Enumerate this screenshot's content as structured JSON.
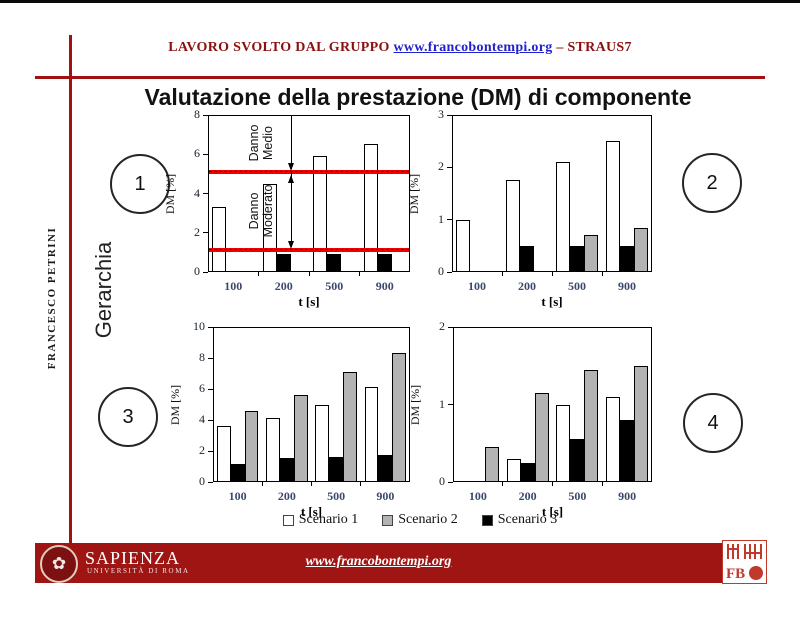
{
  "header": {
    "prefix": "LAVORO SVOLTO DAL GRUPPO",
    "link": "www.francobontempi.org",
    "suffix": "– STRAUS7"
  },
  "title": "Valutazione della prestazione (DM) di componente",
  "sidebar": {
    "author": "FRANCESCO PETRINI",
    "hierarchy_label": "Gerarchia"
  },
  "markers": [
    "1",
    "2",
    "3",
    "4"
  ],
  "legend": [
    {
      "label": "Scenario 1",
      "color": "#ffffff"
    },
    {
      "label": "Scenario 2",
      "color": "#b3b3b3"
    },
    {
      "label": "Scenario 3",
      "color": "#000000"
    }
  ],
  "chart_data": [
    {
      "id": 1,
      "type": "bar",
      "ylabel": "DM [%]",
      "xlabel": "t [s]",
      "ylim": [
        0,
        8
      ],
      "yticks": [
        0,
        2,
        4,
        6,
        8
      ],
      "categories": [
        "100",
        "200",
        "500",
        "900"
      ],
      "series": [
        {
          "name": "Scenario 1",
          "color": "#ffffff",
          "values": [
            3.3,
            4.5,
            5.9,
            6.5
          ]
        },
        {
          "name": "Scenario 2",
          "color": "#b3b3b3",
          "values": [
            0,
            0,
            0,
            0
          ]
        },
        {
          "name": "Scenario 3",
          "color": "#000000",
          "values": [
            0,
            0.9,
            0.9,
            0.9
          ]
        }
      ],
      "thresholds": [
        {
          "value": 5.1,
          "zone_label_lines": [
            "Danno",
            "Medio"
          ],
          "zone_from": 5.1,
          "zone_to": 8
        },
        {
          "value": 1.1,
          "zone_label_lines": [
            "Danno",
            "Moderato"
          ],
          "zone_from": 1.1,
          "zone_to": 5.1
        }
      ]
    },
    {
      "id": 2,
      "type": "bar",
      "ylabel": "DM [%]",
      "xlabel": "t [s]",
      "ylim": [
        0,
        3
      ],
      "yticks": [
        0,
        1,
        2,
        3
      ],
      "categories": [
        "100",
        "200",
        "500",
        "900"
      ],
      "series": [
        {
          "name": "Scenario 1",
          "color": "#ffffff",
          "values": [
            1.0,
            1.75,
            2.1,
            2.5
          ]
        },
        {
          "name": "Scenario 2",
          "color": "#b3b3b3",
          "values": [
            0,
            0,
            0.7,
            0.85
          ]
        },
        {
          "name": "Scenario 3",
          "color": "#000000",
          "values": [
            0,
            0.5,
            0.5,
            0.5
          ]
        }
      ]
    },
    {
      "id": 3,
      "type": "bar",
      "ylabel": "DM [%]",
      "xlabel": "t [s]",
      "ylim": [
        0,
        10
      ],
      "yticks": [
        0,
        2,
        4,
        6,
        8,
        10
      ],
      "categories": [
        "100",
        "200",
        "500",
        "900"
      ],
      "series": [
        {
          "name": "Scenario 1",
          "color": "#ffffff",
          "values": [
            3.6,
            4.1,
            5.0,
            6.1
          ]
        },
        {
          "name": "Scenario 2",
          "color": "#b3b3b3",
          "values": [
            4.6,
            5.6,
            7.1,
            8.3
          ]
        },
        {
          "name": "Scenario 3",
          "color": "#000000",
          "values": [
            1.15,
            1.55,
            1.6,
            1.75
          ]
        }
      ]
    },
    {
      "id": 4,
      "type": "bar",
      "ylabel": "DM [%]",
      "xlabel": "t [s]",
      "ylim": [
        0,
        2
      ],
      "yticks": [
        0,
        1,
        2
      ],
      "categories": [
        "100",
        "200",
        "500",
        "900"
      ],
      "series": [
        {
          "name": "Scenario 1",
          "color": "#ffffff",
          "values": [
            0,
            0.3,
            1.0,
            1.1
          ]
        },
        {
          "name": "Scenario 2",
          "color": "#b3b3b3",
          "values": [
            0.45,
            1.15,
            1.45,
            1.5
          ]
        },
        {
          "name": "Scenario 3",
          "color": "#000000",
          "values": [
            0,
            0.25,
            0.55,
            0.8
          ]
        }
      ]
    }
  ],
  "footer": {
    "university": "SAPIENZA",
    "university_subtitle": "UNIVERSITÀ DI ROMA",
    "link": "www.francobontempi.org"
  },
  "colors": {
    "maroon_line": "#a01212",
    "header_text": "#8b1111",
    "link_blue": "#2222cc",
    "threshold_red": "#ee0000",
    "tick_blue": "#3a486b",
    "footer_bar": "#9e1513",
    "seal_red": "#c0392b"
  }
}
